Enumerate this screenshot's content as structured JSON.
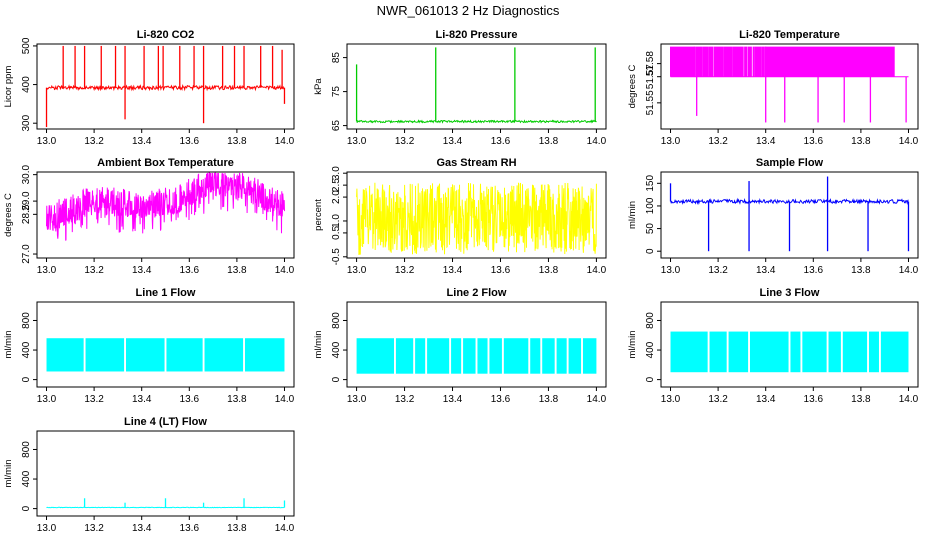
{
  "title": "NWR_061013  2 Hz Diagnostics",
  "chart_data": [
    {
      "type": "line",
      "title": "Li-820 CO2",
      "ylabel": "Licor ppm",
      "color": "#ff0000",
      "xlim": [
        13.0,
        14.0
      ],
      "ylim": [
        285,
        505
      ],
      "xticks": [
        13.0,
        13.2,
        13.4,
        13.6,
        13.8,
        14.0
      ],
      "xtick_labels": [
        "13.0",
        "13.2",
        "13.4",
        "13.6",
        "13.8",
        "14.0"
      ],
      "yticks": [
        300,
        400,
        500
      ],
      "ytick_labels": [
        "300",
        "400",
        "500"
      ],
      "base": {
        "value": 392,
        "noise": 5
      },
      "spikes": [
        {
          "x": 13.0,
          "y": 290
        },
        {
          "x": 13.07,
          "y": 500
        },
        {
          "x": 13.12,
          "y": 500
        },
        {
          "x": 13.16,
          "y": 500
        },
        {
          "x": 13.23,
          "y": 500
        },
        {
          "x": 13.29,
          "y": 500
        },
        {
          "x": 13.33,
          "y": 310
        },
        {
          "x": 13.33,
          "y": 500
        },
        {
          "x": 13.41,
          "y": 500
        },
        {
          "x": 13.47,
          "y": 500
        },
        {
          "x": 13.49,
          "y": 500
        },
        {
          "x": 13.56,
          "y": 500
        },
        {
          "x": 13.62,
          "y": 500
        },
        {
          "x": 13.66,
          "y": 300
        },
        {
          "x": 13.66,
          "y": 500
        },
        {
          "x": 13.74,
          "y": 500
        },
        {
          "x": 13.79,
          "y": 500
        },
        {
          "x": 13.83,
          "y": 500
        },
        {
          "x": 13.9,
          "y": 500
        },
        {
          "x": 13.95,
          "y": 500
        },
        {
          "x": 13.99,
          "y": 490
        },
        {
          "x": 14.0,
          "y": 350
        }
      ]
    },
    {
      "type": "line",
      "title": "Li-820 Pressure",
      "ylabel": "kPa",
      "color": "#00cc00",
      "xlim": [
        13.0,
        14.0
      ],
      "ylim": [
        64,
        89
      ],
      "xticks": [
        13.0,
        13.2,
        13.4,
        13.6,
        13.8,
        14.0
      ],
      "xtick_labels": [
        "13.0",
        "13.2",
        "13.4",
        "13.6",
        "13.8",
        "14.0"
      ],
      "yticks": [
        65,
        75,
        85
      ],
      "ytick_labels": [
        "65",
        "75",
        "85"
      ],
      "base": {
        "value": 66.2,
        "noise": 0.3
      },
      "spikes": [
        {
          "x": 13.0,
          "y": 83
        },
        {
          "x": 13.33,
          "y": 88
        },
        {
          "x": 13.66,
          "y": 88
        },
        {
          "x": 13.995,
          "y": 88
        }
      ]
    },
    {
      "type": "line",
      "title": "Li-820 Temperature",
      "ylabel": "degrees C",
      "color": "#ff00ff",
      "xlim": [
        13.0,
        14.0
      ],
      "ylim": [
        51.53,
        51.595
      ],
      "xticks": [
        13.0,
        13.2,
        13.4,
        13.6,
        13.8,
        14.0
      ],
      "xtick_labels": [
        "13.0",
        "13.2",
        "13.4",
        "13.6",
        "13.8",
        "14.0"
      ],
      "yticks": [
        51.55,
        51.57,
        51.58
      ],
      "ytick_labels": [
        "51.55",
        "51.57",
        "51.58"
      ],
      "base": {
        "value": 51.57,
        "noise": 0
      },
      "bands": [
        {
          "from": 13.0,
          "to": 13.1,
          "high": 51.593,
          "density": 0.5
        },
        {
          "from": 13.1,
          "to": 13.4,
          "high": 51.593,
          "density": 0.55
        },
        {
          "from": 13.4,
          "to": 13.94,
          "high": 51.593,
          "density": 0.97
        }
      ],
      "spikes": [
        {
          "x": 13.11,
          "y": 51.54
        },
        {
          "x": 13.4,
          "y": 51.535
        },
        {
          "x": 13.48,
          "y": 51.535
        },
        {
          "x": 13.62,
          "y": 51.535
        },
        {
          "x": 13.73,
          "y": 51.535
        },
        {
          "x": 13.84,
          "y": 51.535
        },
        {
          "x": 13.99,
          "y": 51.535
        }
      ]
    },
    {
      "type": "line",
      "title": "Ambient Box Temperature",
      "ylabel": "degrees C",
      "color": "#ff00ff",
      "xlim": [
        13.0,
        14.0
      ],
      "ylim": [
        26.85,
        30.1
      ],
      "xticks": [
        13.0,
        13.2,
        13.4,
        13.6,
        13.8,
        14.0
      ],
      "xtick_labels": [
        "13.0",
        "13.2",
        "13.4",
        "13.6",
        "13.8",
        "14.0"
      ],
      "yticks": [
        27.0,
        28.5,
        29.0,
        30.0
      ],
      "ytick_labels": [
        "27.0",
        "28.5",
        "29.0",
        "30.0"
      ],
      "trend": [
        [
          13.0,
          28.2
        ],
        [
          13.2,
          28.9
        ],
        [
          13.4,
          28.7
        ],
        [
          13.55,
          28.9
        ],
        [
          13.7,
          29.7
        ],
        [
          13.85,
          29.3
        ],
        [
          14.0,
          28.7
        ]
      ],
      "band": {
        "up": 0.7,
        "down": 1.0
      }
    },
    {
      "type": "line",
      "title": "Gas Stream RH",
      "ylabel": "percent",
      "color": "#ffff00",
      "xlim": [
        13.0,
        14.0
      ],
      "ylim": [
        -0.55,
        3.05
      ],
      "xticks": [
        13.0,
        13.2,
        13.4,
        13.6,
        13.8,
        14.0
      ],
      "xtick_labels": [
        "13.0",
        "13.2",
        "13.4",
        "13.6",
        "13.8",
        "14.0"
      ],
      "yticks": [
        -0.5,
        0.5,
        1.0,
        2.0,
        2.5,
        3.0
      ],
      "ytick_labels": [
        "-0.5",
        "0.5",
        "1.0",
        "2.0",
        "2.5",
        "3.0"
      ],
      "range": [
        -0.4,
        2.6
      ]
    },
    {
      "type": "line",
      "title": "Sample Flow",
      "ylabel": "ml/min",
      "color": "#0000ff",
      "xlim": [
        13.0,
        14.0
      ],
      "ylim": [
        -15,
        175
      ],
      "xticks": [
        13.0,
        13.2,
        13.4,
        13.6,
        13.8,
        14.0
      ],
      "xtick_labels": [
        "13.0",
        "13.2",
        "13.4",
        "13.6",
        "13.8",
        "14.0"
      ],
      "yticks": [
        0,
        50,
        100,
        150
      ],
      "ytick_labels": [
        "0",
        "50",
        "100",
        "150"
      ],
      "base": {
        "value": 110,
        "noise": 4
      },
      "spikes": [
        {
          "x": 13.0,
          "y": 150
        },
        {
          "x": 13.16,
          "y": 0
        },
        {
          "x": 13.33,
          "y": 155
        },
        {
          "x": 13.33,
          "y": 0
        },
        {
          "x": 13.5,
          "y": 0
        },
        {
          "x": 13.66,
          "y": 165
        },
        {
          "x": 13.66,
          "y": 0
        },
        {
          "x": 13.83,
          "y": 0
        },
        {
          "x": 14.0,
          "y": 0
        }
      ]
    },
    {
      "type": "line",
      "title": "Line 1 Flow",
      "ylabel": "ml/min",
      "color": "#00ffff",
      "xlim": [
        13.0,
        14.0
      ],
      "ylim": [
        -100,
        1050
      ],
      "xticks": [
        13.0,
        13.2,
        13.4,
        13.6,
        13.8,
        14.0
      ],
      "xtick_labels": [
        "13.0",
        "13.2",
        "13.4",
        "13.6",
        "13.8",
        "14.0"
      ],
      "yticks": [
        0,
        400,
        800
      ],
      "ytick_labels": [
        "0",
        "400",
        "800"
      ],
      "fill": {
        "low": 110,
        "high": 560
      },
      "gaps": [
        13.16,
        13.33,
        13.5,
        13.66,
        13.83
      ]
    },
    {
      "type": "line",
      "title": "Line 2 Flow",
      "ylabel": "ml/min",
      "color": "#00ffff",
      "xlim": [
        13.0,
        14.0
      ],
      "ylim": [
        -100,
        1050
      ],
      "xticks": [
        13.0,
        13.2,
        13.4,
        13.6,
        13.8,
        14.0
      ],
      "xtick_labels": [
        "13.0",
        "13.2",
        "13.4",
        "13.6",
        "13.8",
        "14.0"
      ],
      "yticks": [
        0,
        400,
        800
      ],
      "ytick_labels": [
        "0",
        "400",
        "800"
      ],
      "fill": {
        "low": 80,
        "high": 560
      },
      "gaps": [
        13.16,
        13.24,
        13.29,
        13.39,
        13.44,
        13.5,
        13.55,
        13.61,
        13.72,
        13.77,
        13.83,
        13.88,
        13.94
      ]
    },
    {
      "type": "line",
      "title": "Line 3 Flow",
      "ylabel": "ml/min",
      "color": "#00ffff",
      "xlim": [
        13.0,
        14.0
      ],
      "ylim": [
        -100,
        1050
      ],
      "xticks": [
        13.0,
        13.2,
        13.4,
        13.6,
        13.8,
        14.0
      ],
      "xtick_labels": [
        "13.0",
        "13.2",
        "13.4",
        "13.6",
        "13.8",
        "14.0"
      ],
      "yticks": [
        0,
        400,
        800
      ],
      "ytick_labels": [
        "0",
        "400",
        "800"
      ],
      "fill": {
        "low": 100,
        "high": 650
      },
      "gaps": [
        13.16,
        13.24,
        13.33,
        13.5,
        13.55,
        13.66,
        13.72,
        13.83,
        13.88
      ]
    },
    {
      "type": "line",
      "title": "Line 4 (LT) Flow",
      "ylabel": "ml/min",
      "color": "#00ffff",
      "xlim": [
        13.0,
        14.0
      ],
      "ylim": [
        -100,
        1050
      ],
      "xticks": [
        13.0,
        13.2,
        13.4,
        13.6,
        13.8,
        14.0
      ],
      "xtick_labels": [
        "13.0",
        "13.2",
        "13.4",
        "13.6",
        "13.8",
        "14.0"
      ],
      "yticks": [
        0,
        400,
        800
      ],
      "ytick_labels": [
        "0",
        "400",
        "800"
      ],
      "base": {
        "value": 15,
        "noise": 3
      },
      "spikes": [
        {
          "x": 13.16,
          "y": 140
        },
        {
          "x": 13.33,
          "y": 80
        },
        {
          "x": 13.5,
          "y": 140
        },
        {
          "x": 13.66,
          "y": 80
        },
        {
          "x": 13.83,
          "y": 140
        },
        {
          "x": 14.0,
          "y": 110
        }
      ]
    }
  ]
}
